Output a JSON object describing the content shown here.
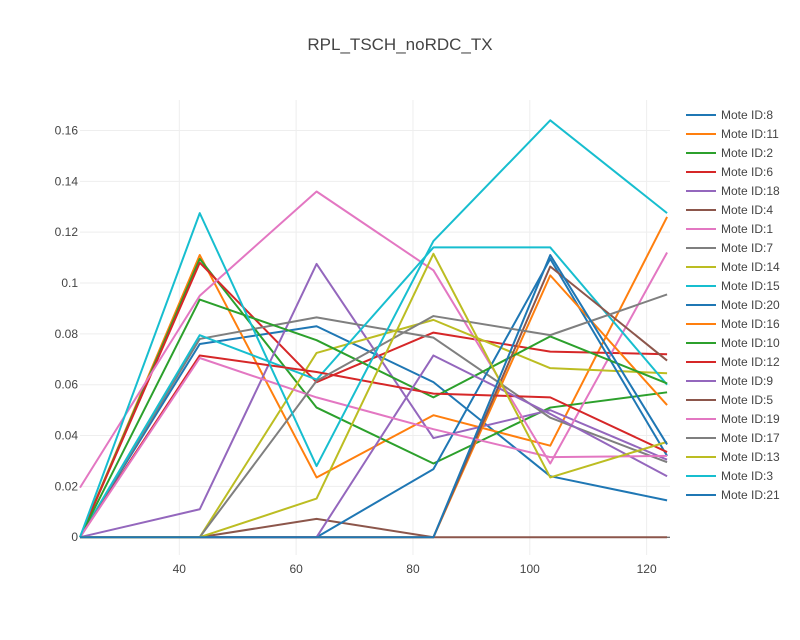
{
  "chart_data": {
    "type": "line",
    "title": "RPL_TSCH_noRDC_TX",
    "xlabel": "",
    "ylabel": "",
    "xlim": [
      23,
      124
    ],
    "ylim": [
      -0.007,
      0.172
    ],
    "x_ticks": [
      40,
      60,
      80,
      100,
      120
    ],
    "x_tick_labels": [
      "40",
      "60",
      "80",
      "100",
      "120"
    ],
    "y_ticks": [
      0,
      0.02,
      0.04,
      0.06,
      0.08,
      0.1,
      0.12,
      0.14,
      0.16
    ],
    "y_tick_labels": [
      "0",
      "0.02",
      "0.04",
      "0.06",
      "0.08",
      "0.1",
      "0.12",
      "0.14",
      "0.16"
    ],
    "grid": true,
    "legend_position": "right",
    "x": [
      23,
      43.5,
      63.5,
      83.5,
      103.5,
      123.5
    ],
    "series": [
      {
        "name": "Mote ID:8",
        "color": "#1f77b4",
        "values": [
          0,
          0.076,
          0.083,
          0.061,
          0.024,
          0.0145
        ]
      },
      {
        "name": "Mote ID:11",
        "color": "#ff7f0e",
        "values": [
          0,
          0.111,
          0.0235,
          0.048,
          0.036,
          0.126
        ]
      },
      {
        "name": "Mote ID:2",
        "color": "#2ca02c",
        "values": [
          0,
          0.1095,
          0.051,
          0.029,
          0.051,
          0.057
        ]
      },
      {
        "name": "Mote ID:6",
        "color": "#d62728",
        "values": [
          0,
          0.108,
          0.061,
          0.0805,
          0.073,
          0.072
        ]
      },
      {
        "name": "Mote ID:18",
        "color": "#9467bd",
        "values": [
          0,
          0.011,
          0.1075,
          0.039,
          0.05,
          0.0305
        ]
      },
      {
        "name": "Mote ID:4",
        "color": "#8c564b",
        "values": [
          0,
          0,
          0.0072,
          0,
          0,
          0
        ]
      },
      {
        "name": "Mote ID:1",
        "color": "#e377c2",
        "values": [
          0.0195,
          0.095,
          0.136,
          0.105,
          0.029,
          0.112
        ]
      },
      {
        "name": "Mote ID:7",
        "color": "#7f7f7f",
        "values": [
          0,
          0.078,
          0.0865,
          0.0785,
          0.047,
          0.0295
        ]
      },
      {
        "name": "Mote ID:14",
        "color": "#bcbd22",
        "values": [
          0,
          0,
          0.0725,
          0.0855,
          0.0665,
          0.0645
        ]
      },
      {
        "name": "Mote ID:15",
        "color": "#17becf",
        "values": [
          0,
          0.0795,
          0.062,
          0.114,
          0.114,
          0.06
        ]
      },
      {
        "name": "Mote ID:20",
        "color": "#1f77b4",
        "values": [
          0,
          0,
          0,
          0.0268,
          0.1095,
          0.032
        ]
      },
      {
        "name": "Mote ID:16",
        "color": "#ff7f0e",
        "values": [
          0,
          0,
          0,
          0,
          0.103,
          0.052
        ]
      },
      {
        "name": "Mote ID:10",
        "color": "#2ca02c",
        "values": [
          0,
          0.0935,
          0.0775,
          0.055,
          0.079,
          0.0605
        ]
      },
      {
        "name": "Mote ID:12",
        "color": "#d62728",
        "values": [
          0,
          0.0715,
          0.065,
          0.0565,
          0.055,
          0.0335
        ]
      },
      {
        "name": "Mote ID:9",
        "color": "#9467bd",
        "values": [
          0,
          0,
          0,
          0.0715,
          0.0485,
          0.024
        ]
      },
      {
        "name": "Mote ID:5",
        "color": "#8c564b",
        "values": [
          0,
          0,
          0,
          0,
          0.1065,
          0.0695
        ]
      },
      {
        "name": "Mote ID:19",
        "color": "#e377c2",
        "values": [
          0,
          0.0705,
          0.055,
          0.0425,
          0.0315,
          0.032
        ]
      },
      {
        "name": "Mote ID:17",
        "color": "#7f7f7f",
        "values": [
          0,
          0,
          0.0615,
          0.087,
          0.0795,
          0.0955
        ]
      },
      {
        "name": "Mote ID:13",
        "color": "#bcbd22",
        "values": [
          0,
          0,
          0.0152,
          0.1115,
          0.0235,
          0.0375
        ]
      },
      {
        "name": "Mote ID:3",
        "color": "#17becf",
        "values": [
          0,
          0.1275,
          0.028,
          0.1165,
          0.164,
          0.1275
        ]
      },
      {
        "name": "Mote ID:21",
        "color": "#1f77b4",
        "values": [
          0,
          0,
          0,
          0,
          0.111,
          0.0365
        ]
      }
    ]
  }
}
